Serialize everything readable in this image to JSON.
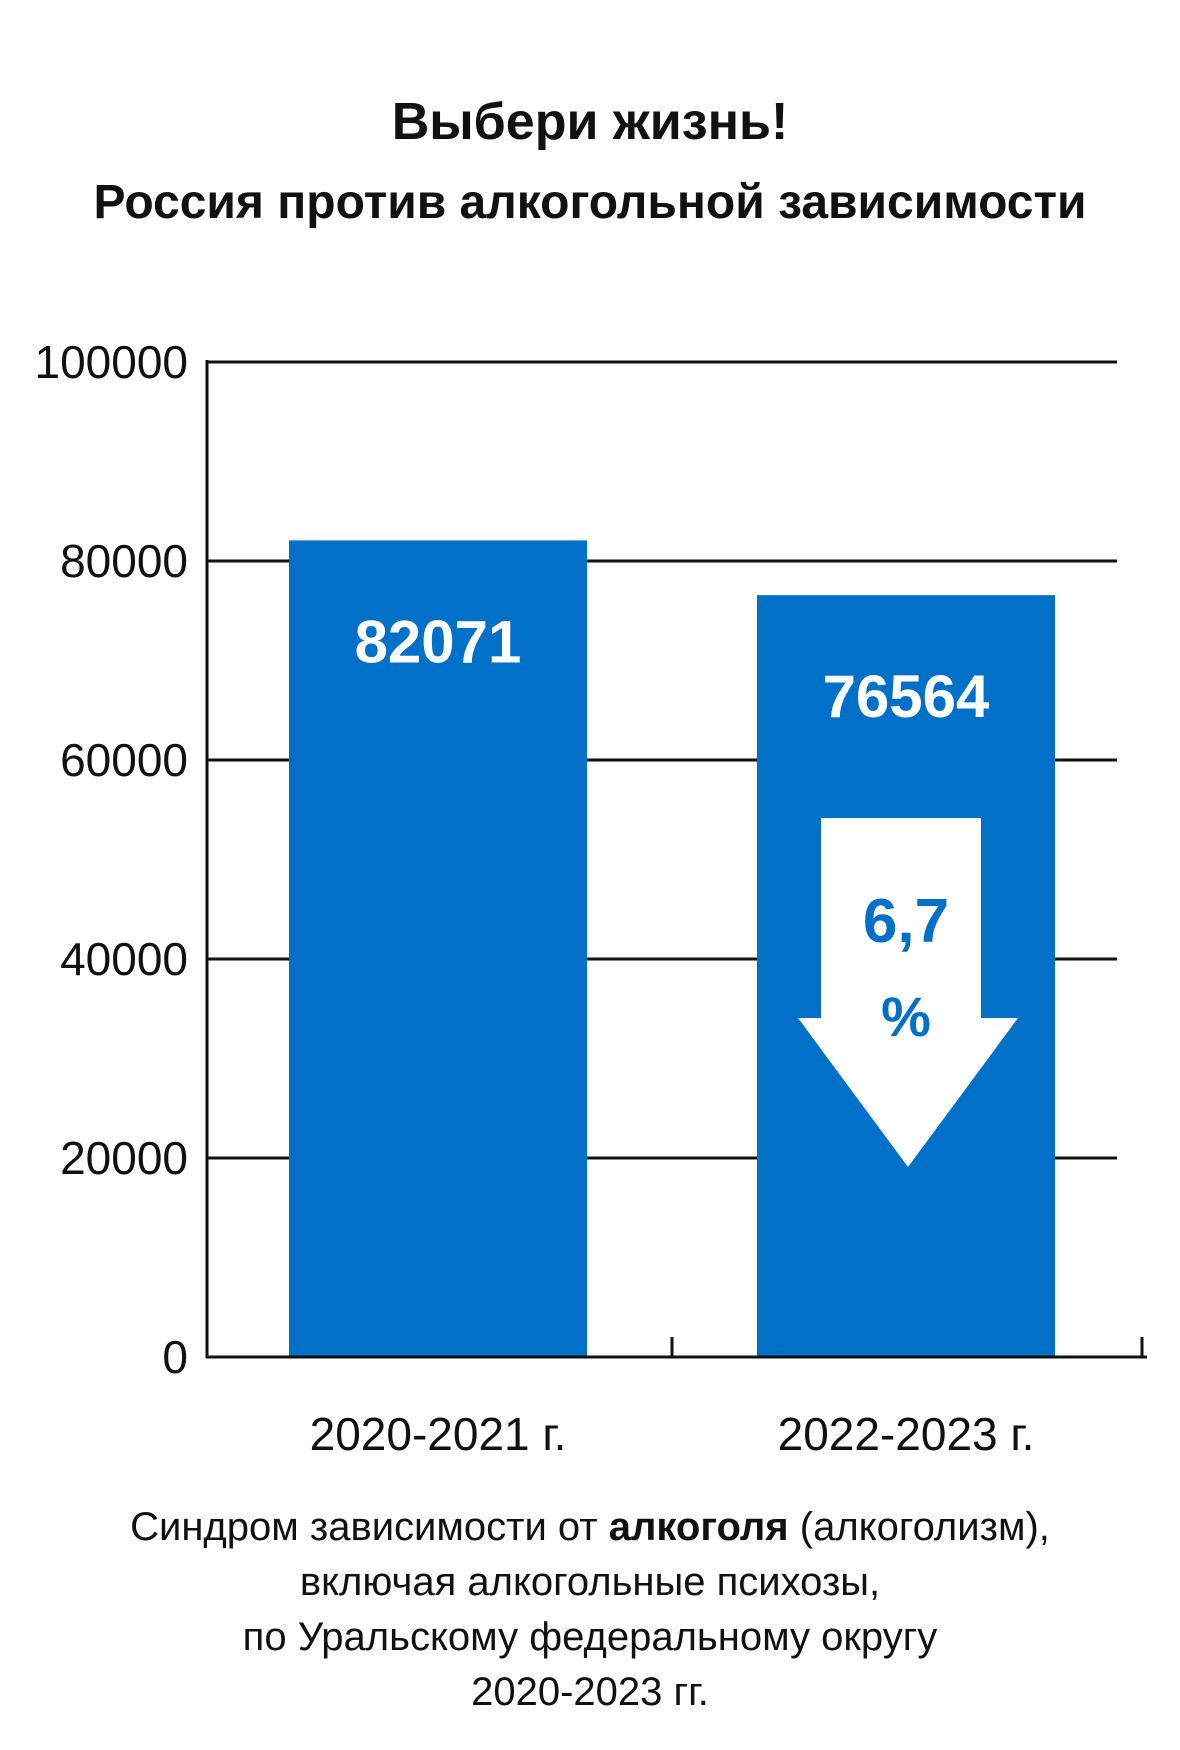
{
  "title": "Выбери жизнь!",
  "subtitle": "Россия против алкогольной зависимости",
  "chart_data": {
    "type": "bar",
    "categories": [
      "2020-2021 г.",
      "2022-2023 г."
    ],
    "values": [
      82071,
      76564
    ],
    "data_labels": [
      "82071",
      "76564"
    ],
    "ylim": [
      0,
      100000
    ],
    "yticks": [
      "0",
      "20000",
      "40000",
      "60000",
      "80000",
      "100000"
    ],
    "grid": true,
    "bar_color": "#0070C8",
    "annotation": {
      "value": "6,7",
      "unit": "%",
      "icon": "down-arrow-icon",
      "color": "#0070C8"
    }
  },
  "footer": {
    "line1_before": "Синдром зависимости  от ",
    "line1_bold": "алкоголя",
    "line1_after": " (алкоголизм),",
    "line2": "включая алкогольные психозы,",
    "line3": "по Уральскому федеральному округу",
    "line4": "2020-2023 гг."
  }
}
